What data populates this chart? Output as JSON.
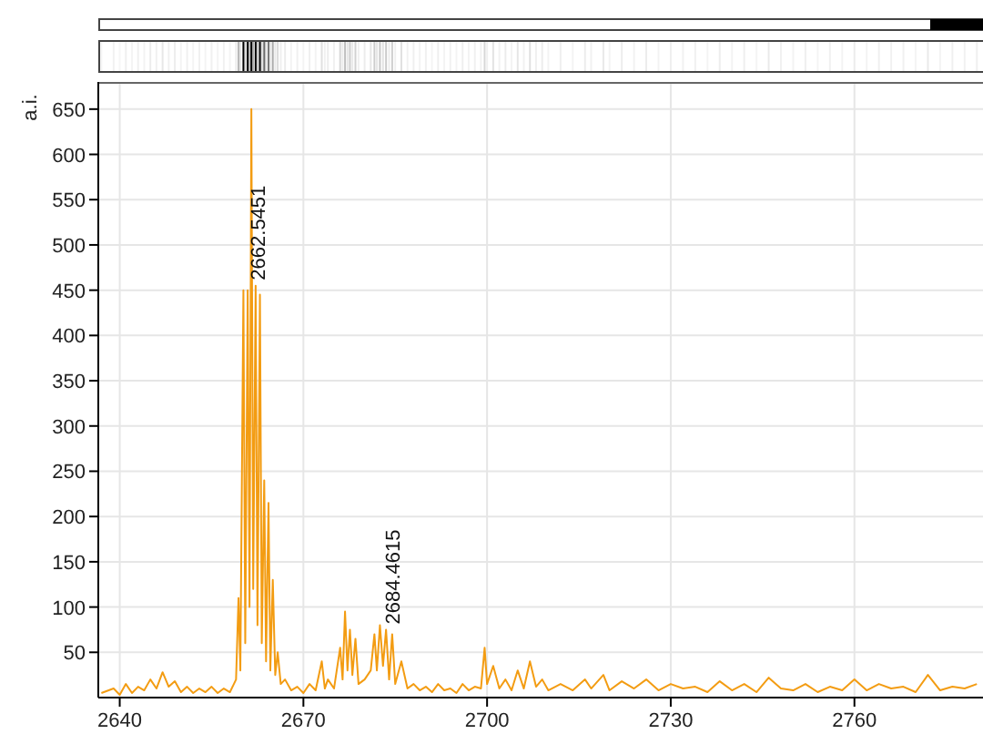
{
  "chart_data": {
    "type": "line",
    "ylabel": "a.i.",
    "xlim": [
      2636.5,
      2781
    ],
    "ylim": [
      0,
      680
    ],
    "xticks": [
      2640,
      2670,
      2700,
      2730,
      2760
    ],
    "yticks": [
      50,
      100,
      150,
      200,
      250,
      300,
      350,
      400,
      450,
      500,
      550,
      600,
      650
    ],
    "grid": true,
    "marker": "none",
    "line_style": "solid",
    "annotations": [
      {
        "text": "2662.5451",
        "x": 2662.5451,
        "y": 455
      },
      {
        "text": "2684.4615",
        "x": 2684.4615,
        "y": 75
      }
    ],
    "series": [
      {
        "color": "#f39c12",
        "x": [
          2637,
          2639,
          2640,
          2641,
          2642,
          2643,
          2644,
          2645,
          2646,
          2647,
          2648,
          2649,
          2650,
          2651,
          2652,
          2653,
          2654,
          2655,
          2656,
          2657,
          2658,
          2659,
          2659.4,
          2659.7,
          2660.2,
          2660.5,
          2660.9,
          2661.2,
          2661.5,
          2661.8,
          2662.2,
          2662.5,
          2662.9,
          2663.2,
          2663.6,
          2663.9,
          2664.3,
          2664.6,
          2665,
          2665.4,
          2665.8,
          2666.3,
          2667,
          2668,
          2669,
          2670,
          2671,
          2672,
          2673,
          2673.5,
          2674,
          2675,
          2676,
          2676.4,
          2676.8,
          2677.2,
          2677.6,
          2678,
          2678.5,
          2679,
          2680,
          2681,
          2681.6,
          2682,
          2682.5,
          2683,
          2683.5,
          2684,
          2684.5,
          2685,
          2686,
          2687,
          2688,
          2689,
          2690,
          2691,
          2692,
          2693,
          2694,
          2695,
          2696,
          2697,
          2698,
          2699,
          2699.6,
          2700,
          2701,
          2702,
          2703,
          2704,
          2705,
          2706,
          2707,
          2708,
          2709,
          2710,
          2712,
          2714,
          2716,
          2717,
          2719,
          2720,
          2722,
          2724,
          2726,
          2728,
          2730,
          2732,
          2734,
          2736,
          2738,
          2740,
          2742,
          2744,
          2746,
          2748,
          2750,
          2752,
          2754,
          2756,
          2758,
          2760,
          2762,
          2764,
          2766,
          2768,
          2770,
          2772,
          2774,
          2776,
          2778,
          2780
        ],
        "values": [
          5,
          10,
          3,
          15,
          5,
          12,
          8,
          20,
          10,
          28,
          12,
          18,
          6,
          12,
          5,
          10,
          6,
          12,
          5,
          10,
          6,
          20,
          110,
          30,
          450,
          60,
          450,
          100,
          650,
          120,
          455,
          80,
          445,
          60,
          240,
          40,
          215,
          30,
          130,
          25,
          50,
          15,
          20,
          8,
          12,
          5,
          15,
          8,
          40,
          10,
          20,
          10,
          55,
          20,
          95,
          30,
          75,
          25,
          65,
          15,
          20,
          30,
          70,
          30,
          80,
          35,
          75,
          20,
          70,
          15,
          40,
          10,
          15,
          8,
          12,
          6,
          15,
          8,
          10,
          5,
          15,
          8,
          12,
          10,
          55,
          15,
          35,
          10,
          20,
          8,
          30,
          10,
          40,
          12,
          20,
          8,
          15,
          8,
          20,
          10,
          25,
          8,
          18,
          10,
          20,
          8,
          15,
          10,
          12,
          6,
          18,
          8,
          15,
          6,
          22,
          10,
          8,
          15,
          6,
          12,
          8,
          20,
          8,
          15,
          10,
          12,
          6,
          25,
          8,
          12,
          10,
          15
        ]
      }
    ]
  }
}
